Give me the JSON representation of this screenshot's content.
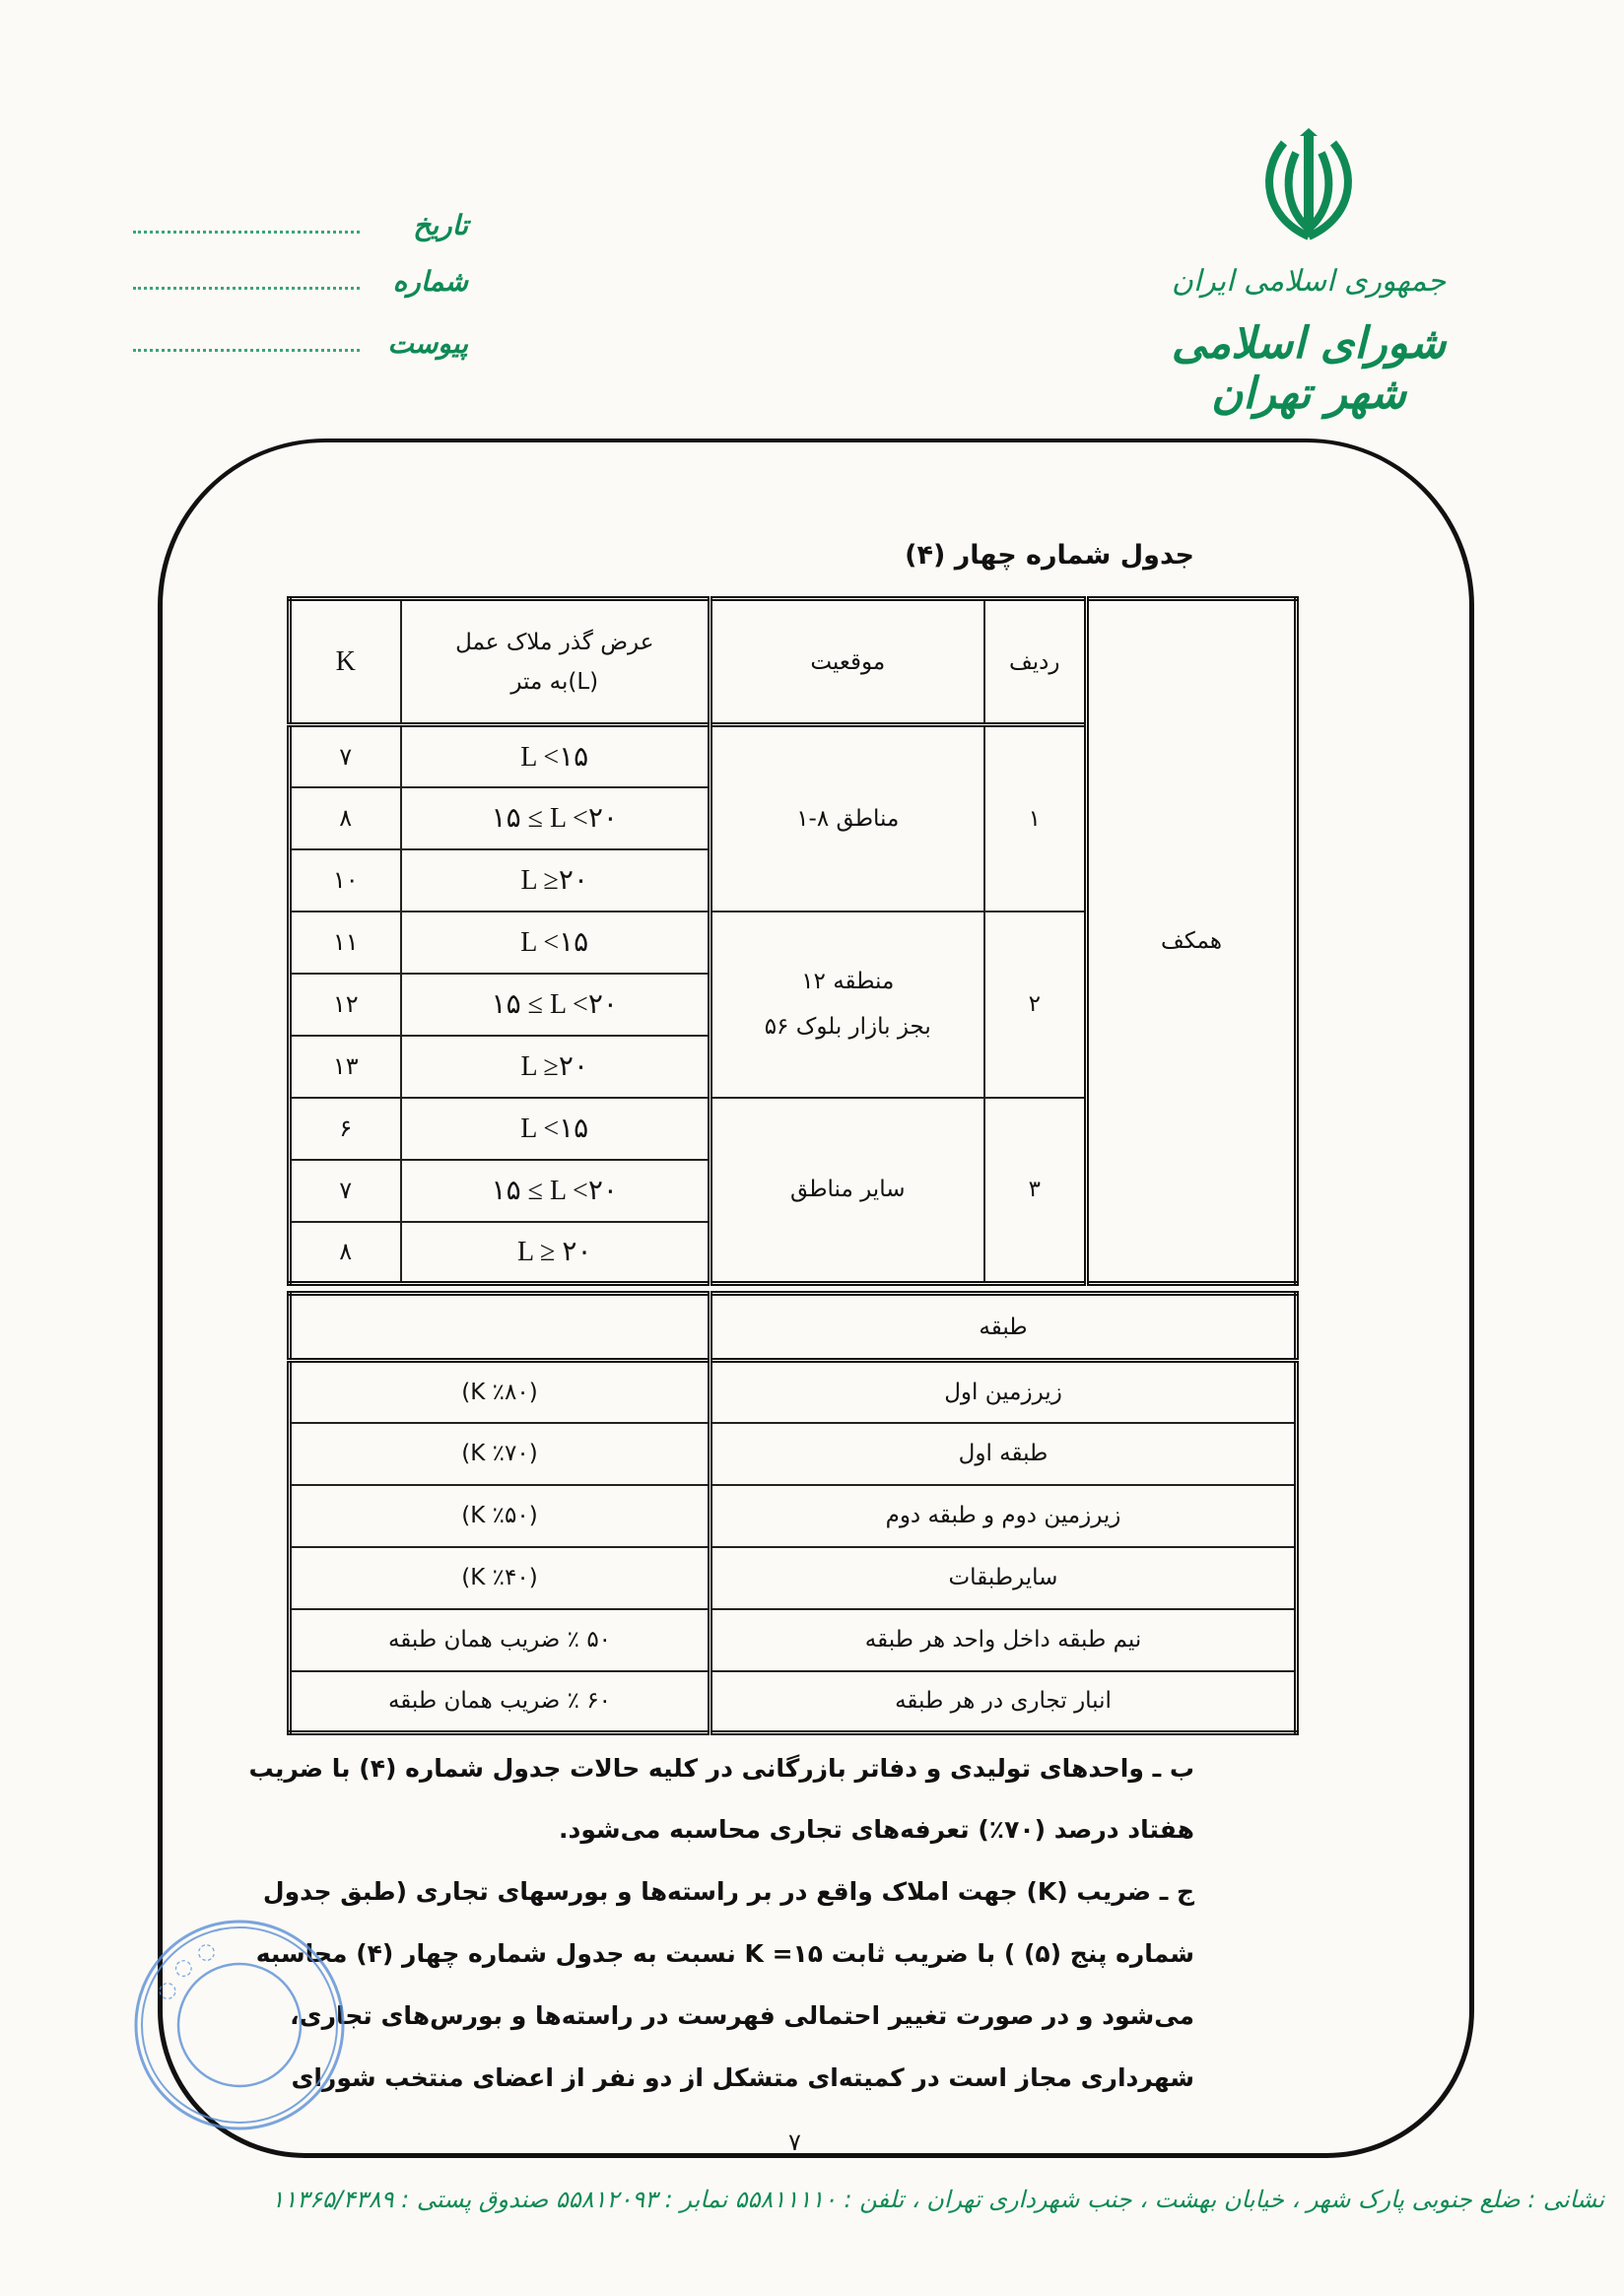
{
  "letterhead": {
    "country": "جمهوری اسلامی ایران",
    "council": "شورای اسلامی شهر تهران",
    "emblem": "iran-emblem",
    "date_label": "تاریخ",
    "number_label": "شماره",
    "attachment_label": "پیوست",
    "brand_color": "#0f8a55"
  },
  "table_title": "جدول شماره چهار (۴)",
  "table1": {
    "headers": {
      "row": "ردیف",
      "location": "موقعیت",
      "width_line1": "عرض گذر ملاک عمل",
      "width_line2": "(L)به متر",
      "k": "K"
    },
    "category": "همکف",
    "groups": [
      {
        "row": "۱",
        "location": "مناطق ۸-۱",
        "location2": "",
        "rows": [
          {
            "l": "L <۱۵",
            "k": "۷"
          },
          {
            "l": "۱۵ ≤ L <۲۰",
            "k": "۸"
          },
          {
            "l": "L ≥۲۰",
            "k": "۱۰"
          }
        ]
      },
      {
        "row": "۲",
        "location": "منطقه ۱۲",
        "location2": "بجز بازار بلوک ۵۶",
        "rows": [
          {
            "l": "L <۱۵",
            "k": "۱۱"
          },
          {
            "l": "۱۵ ≤ L <۲۰",
            "k": "۱۲"
          },
          {
            "l": "L ≥۲۰",
            "k": "۱۳"
          }
        ]
      },
      {
        "row": "۳",
        "location": "سایر مناطق",
        "location2": "",
        "rows": [
          {
            "l": "L <۱۵",
            "k": "۶"
          },
          {
            "l": "۱۵ ≤ L <۲۰",
            "k": "۷"
          },
          {
            "l": "L ≥ ۲۰",
            "k": "۸"
          }
        ]
      }
    ]
  },
  "table2": {
    "header": "طبقه",
    "header_value": "",
    "rows": [
      {
        "floor": "زیرزمین اول",
        "value": "(٪۸۰ K)"
      },
      {
        "floor": "طبقه اول",
        "value": "(٪۷۰ K)"
      },
      {
        "floor": "زیرزمین دوم و طبقه دوم",
        "value": "(٪۵۰ K)"
      },
      {
        "floor": "سایرطبقات",
        "value": "(٪۴۰ K)"
      },
      {
        "floor": "نیم طبقه داخل واحد هر طبقه",
        "value": "۵۰ ٪ ضریب همان طبقه"
      },
      {
        "floor": "انبار تجاری در هر طبقه",
        "value": "۶۰ ٪ ضریب همان طبقه"
      }
    ]
  },
  "paragraphs": {
    "b_marker": "ب ـ",
    "b_line1": "واحدهای تولیدی و دفاتر بازرگانی در کلیه حالات جدول شماره (۴) با ضریب",
    "b_line2": "هفتاد درصد (۷۰٪)  تعرفه‌های تجاری محاسبه می‌شود.",
    "c_marker": "ج ـ",
    "c_line1": "ضریب (K) جهت املاک واقع در بر راسته‌ها و بورسهای تجاری (طبق جدول",
    "c_line2": "شماره پنج (۵) ) با ضریب ثابت ۱۵= K  نسبت به جدول شماره چهار  (۴) محاسبه",
    "c_line3": "می‌شود و در صورت تغییر احتمالی فهرست در راسته‌ها و بورس‌های تجاری،",
    "c_line4": "شهرداری مجاز است در کمیته‌ای متشکل از دو  نفر از اعضای منتخب شورای"
  },
  "stamp": {
    "text": "شورای اسلامی شهر تهران",
    "color": "#5b8fd6"
  },
  "page_number": "۷",
  "footer": "نشانی : ضلع جنوبی پارک شهر ، خیابان بهشت ، جنب شهرداری تهران ، تلفن : ۵۵۸۱۱۱۱۰  نمابر : ۵۵۸۱۲۰۹۳  صندوق پستی : ۱۱۳۶۵/۴۳۸۹"
}
